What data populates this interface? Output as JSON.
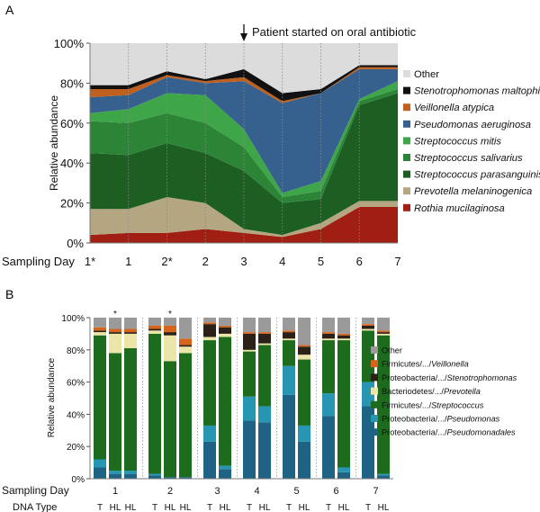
{
  "figure": {
    "panel_a_label": "A",
    "panel_b_label": "B"
  },
  "chart_data": [
    {
      "panel": "A",
      "type": "area",
      "stacked": true,
      "title": "",
      "annotation": "Patient started on oral antibiotic",
      "annotation_at": "3",
      "xlabel": "Sampling Day",
      "ylabel": "Relative abundance",
      "ylim": [
        0,
        100
      ],
      "yticks": [
        "0%",
        "20%",
        "40%",
        "60%",
        "80%",
        "100%"
      ],
      "x": [
        "1*",
        "1",
        "2*",
        "2",
        "3",
        "4",
        "5",
        "6",
        "7"
      ],
      "legend_position": "right",
      "series": [
        {
          "name": "Rothia mucilaginosa",
          "color": "#a11e12",
          "values": [
            4,
            5,
            5,
            7,
            5,
            3,
            7,
            18,
            18
          ]
        },
        {
          "name": "Prevotella melaninogenica",
          "color": "#b5a682",
          "values": [
            13,
            12,
            18,
            13,
            2,
            1,
            3,
            3,
            3
          ]
        },
        {
          "name": "Streptococcus parasanguinis",
          "color": "#1d5e22",
          "values": [
            28,
            27,
            27,
            25,
            29,
            16,
            12,
            48,
            54
          ]
        },
        {
          "name": "Streptococcus salivarius",
          "color": "#2c8436",
          "values": [
            16,
            16,
            15,
            15,
            12,
            3,
            4,
            2,
            2
          ]
        },
        {
          "name": "Streptococcus mitis",
          "color": "#3ea548",
          "values": [
            4,
            7,
            10,
            14,
            9,
            2,
            5,
            1,
            4
          ]
        },
        {
          "name": "Pseudomonas aeruginosa",
          "color": "#36608e",
          "values": [
            8,
            7,
            8,
            6,
            24,
            45,
            44,
            15,
            6
          ]
        },
        {
          "name": "Veillonella atypica",
          "color": "#c0601e",
          "values": [
            4,
            3,
            1,
            1,
            2,
            1,
            0,
            1,
            1
          ]
        },
        {
          "name": "Stenotrophomonas maltophilia",
          "color": "#111111",
          "values": [
            2,
            2,
            2,
            1,
            4,
            4,
            2,
            1,
            1
          ]
        },
        {
          "name": "Other",
          "color": "#dcdcdc",
          "values": [
            21,
            21,
            14,
            18,
            13,
            25,
            23,
            11,
            11
          ]
        }
      ]
    },
    {
      "panel": "B",
      "type": "bar",
      "stacked": true,
      "xlabel": "Sampling Day",
      "dna_type_label": "DNA Type",
      "ylabel": "Relative abundance",
      "ylim": [
        0,
        100
      ],
      "yticks": [
        "0%",
        "20%",
        "40%",
        "60%",
        "80%",
        "100%"
      ],
      "legend_position": "right",
      "groups": [
        {
          "day": "1",
          "bars": [
            "T",
            "HL",
            "HL"
          ],
          "star_bar": 1
        },
        {
          "day": "2",
          "bars": [
            "T",
            "HL",
            "HL"
          ],
          "star_bar": 1
        },
        {
          "day": "3",
          "bars": [
            "T",
            "HL"
          ]
        },
        {
          "day": "4",
          "bars": [
            "T",
            "HL"
          ]
        },
        {
          "day": "5",
          "bars": [
            "T",
            "HL"
          ]
        },
        {
          "day": "6",
          "bars": [
            "T",
            "HL"
          ]
        },
        {
          "day": "7",
          "bars": [
            "T",
            "HL"
          ]
        }
      ],
      "bar_labels": [
        "1-T",
        "1-HL",
        "1-HL",
        "2-T",
        "2-HL",
        "2-HL",
        "3-T",
        "3-HL",
        "4-T",
        "4-HL",
        "5-T",
        "5-HL",
        "6-T",
        "6-HL",
        "7-T",
        "7-HL"
      ],
      "series": [
        {
          "name": "Proteobacteria/.../Pseudomonadales",
          "prefix": "Proteobacteria/.../",
          "suffix": "Pseudomonadales",
          "color": "#1e6384",
          "values": [
            7,
            3,
            3,
            2,
            1,
            1,
            23,
            6,
            36,
            35,
            52,
            23,
            39,
            4,
            45,
            2
          ]
        },
        {
          "name": "Proteobacteria/.../Pseudomonas",
          "prefix": "Proteobacteria/.../",
          "suffix": "Pseudomonas",
          "color": "#2796b3",
          "values": [
            5,
            2,
            2,
            1,
            0,
            0,
            10,
            2,
            15,
            10,
            18,
            10,
            14,
            3,
            15,
            1
          ]
        },
        {
          "name": "Firmicutes/.../Streptococcus",
          "prefix": "Firmicutes/.../",
          "suffix": "Streptococcus",
          "color": "#1d6b1d",
          "values": [
            77,
            73,
            76,
            87,
            72,
            77,
            53,
            80,
            28,
            38,
            16,
            41,
            33,
            79,
            32,
            86
          ]
        },
        {
          "name": "Bacteriodetes/.../Prevotella",
          "prefix": "Bacteriodetes/.../",
          "suffix": "Prevotella",
          "color": "#ece5a8",
          "values": [
            2,
            12,
            9,
            2,
            16,
            4,
            2,
            2,
            1,
            1,
            1,
            3,
            1,
            1,
            1,
            1
          ]
        },
        {
          "name": "Proteobacteria/.../Stenotrophomonas",
          "prefix": "Proteobacteria/.../",
          "suffix": "Stenotrophomonas",
          "color": "#2b2118",
          "values": [
            1,
            1,
            1,
            1,
            2,
            1,
            8,
            4,
            10,
            6,
            4,
            5,
            3,
            2,
            2,
            1
          ]
        },
        {
          "name": "Firmicutes/.../Veillonella",
          "prefix": "Firmicutes/.../",
          "suffix": "Veillonella",
          "color": "#d8641c",
          "values": [
            2,
            2,
            2,
            2,
            4,
            4,
            1,
            1,
            1,
            1,
            1,
            1,
            1,
            1,
            1,
            1
          ]
        },
        {
          "name": "Other",
          "prefix": "",
          "suffix": "Other",
          "color": "#9a9a9a",
          "values": [
            6,
            7,
            7,
            5,
            5,
            13,
            3,
            5,
            9,
            9,
            8,
            17,
            9,
            10,
            4,
            8
          ]
        }
      ]
    }
  ]
}
